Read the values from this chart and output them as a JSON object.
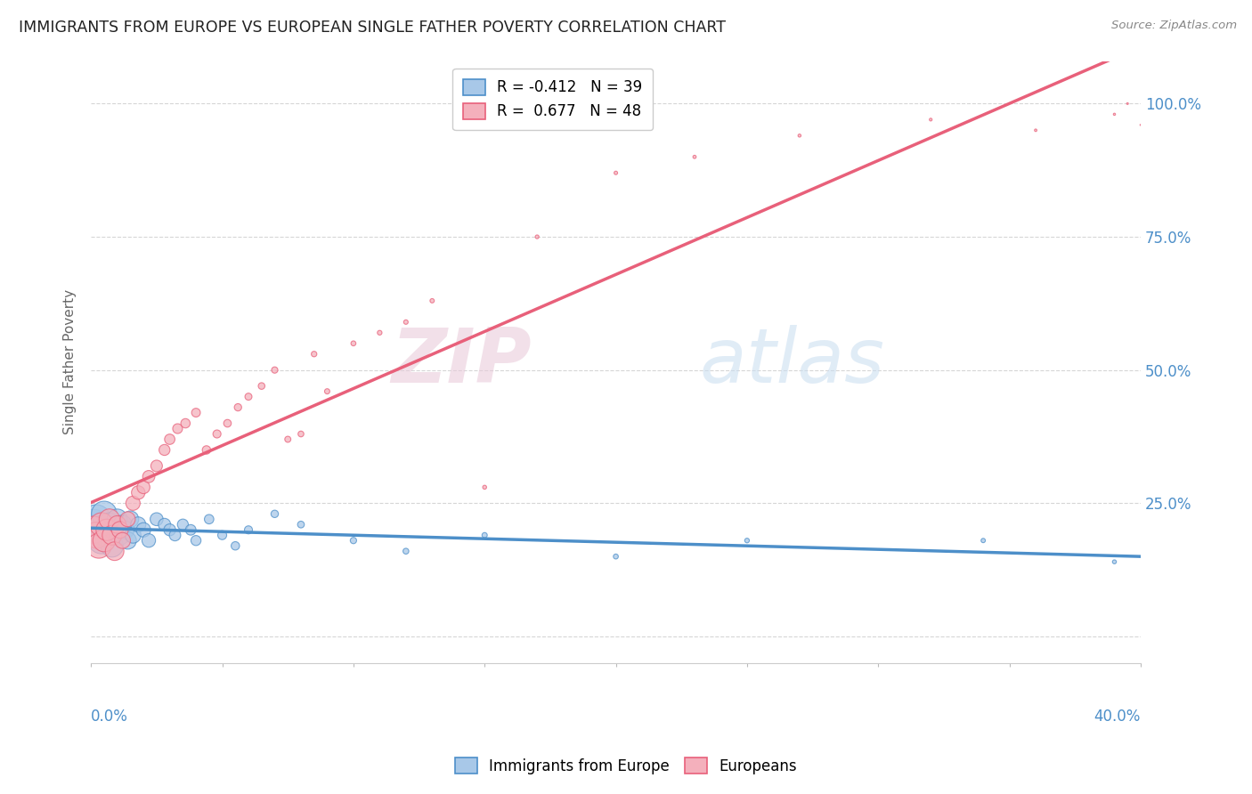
{
  "title": "IMMIGRANTS FROM EUROPE VS EUROPEAN SINGLE FATHER POVERTY CORRELATION CHART",
  "source": "Source: ZipAtlas.com",
  "ylabel": "Single Father Poverty",
  "right_yticklabels": [
    "",
    "25.0%",
    "50.0%",
    "75.0%",
    "100.0%"
  ],
  "right_yticks": [
    0.0,
    0.25,
    0.5,
    0.75,
    1.0
  ],
  "xlim": [
    0.0,
    0.4
  ],
  "ylim": [
    -0.05,
    1.08
  ],
  "blue_R": -0.412,
  "blue_N": 39,
  "pink_R": 0.677,
  "pink_N": 48,
  "blue_color": "#a8c8e8",
  "pink_color": "#f4b0bc",
  "blue_line_color": "#4d8fc9",
  "pink_line_color": "#e8607a",
  "legend_blue_label": "Immigrants from Europe",
  "legend_pink_label": "Europeans",
  "watermark_zip": "ZIP",
  "watermark_atlas": "atlas",
  "blue_scatter_x": [
    0.001,
    0.002,
    0.003,
    0.004,
    0.005,
    0.006,
    0.007,
    0.008,
    0.009,
    0.01,
    0.011,
    0.012,
    0.013,
    0.014,
    0.015,
    0.016,
    0.018,
    0.02,
    0.022,
    0.025,
    0.028,
    0.03,
    0.032,
    0.035,
    0.038,
    0.04,
    0.045,
    0.05,
    0.055,
    0.06,
    0.07,
    0.08,
    0.1,
    0.12,
    0.15,
    0.2,
    0.25,
    0.34,
    0.39
  ],
  "blue_scatter_y": [
    0.21,
    0.22,
    0.2,
    0.18,
    0.23,
    0.19,
    0.21,
    0.17,
    0.2,
    0.22,
    0.19,
    0.21,
    0.2,
    0.18,
    0.22,
    0.19,
    0.21,
    0.2,
    0.18,
    0.22,
    0.21,
    0.2,
    0.19,
    0.21,
    0.2,
    0.18,
    0.22,
    0.19,
    0.17,
    0.2,
    0.23,
    0.21,
    0.18,
    0.16,
    0.19,
    0.15,
    0.18,
    0.18,
    0.14
  ],
  "blue_marker_sizes": [
    600,
    550,
    500,
    460,
    420,
    390,
    360,
    330,
    300,
    270,
    250,
    230,
    210,
    195,
    180,
    165,
    150,
    135,
    120,
    110,
    100,
    92,
    85,
    78,
    72,
    66,
    58,
    52,
    46,
    42,
    36,
    30,
    26,
    22,
    18,
    16,
    14,
    12,
    10
  ],
  "pink_scatter_x": [
    0.001,
    0.002,
    0.003,
    0.004,
    0.005,
    0.006,
    0.007,
    0.008,
    0.009,
    0.01,
    0.011,
    0.012,
    0.014,
    0.016,
    0.018,
    0.02,
    0.022,
    0.025,
    0.028,
    0.03,
    0.033,
    0.036,
    0.04,
    0.044,
    0.048,
    0.052,
    0.056,
    0.06,
    0.065,
    0.07,
    0.075,
    0.08,
    0.085,
    0.09,
    0.1,
    0.11,
    0.12,
    0.13,
    0.15,
    0.17,
    0.2,
    0.23,
    0.27,
    0.32,
    0.36,
    0.39,
    0.395,
    0.4
  ],
  "pink_scatter_y": [
    0.2,
    0.19,
    0.17,
    0.21,
    0.18,
    0.2,
    0.22,
    0.19,
    0.16,
    0.21,
    0.2,
    0.18,
    0.22,
    0.25,
    0.27,
    0.28,
    0.3,
    0.32,
    0.35,
    0.37,
    0.39,
    0.4,
    0.42,
    0.35,
    0.38,
    0.4,
    0.43,
    0.45,
    0.47,
    0.5,
    0.37,
    0.38,
    0.53,
    0.46,
    0.55,
    0.57,
    0.59,
    0.63,
    0.28,
    0.75,
    0.87,
    0.9,
    0.94,
    0.97,
    0.95,
    0.98,
    1.0,
    0.96
  ],
  "pink_marker_sizes": [
    480,
    440,
    400,
    365,
    330,
    300,
    275,
    250,
    225,
    200,
    182,
    165,
    148,
    133,
    120,
    108,
    97,
    87,
    78,
    70,
    63,
    57,
    50,
    46,
    42,
    38,
    35,
    32,
    29,
    26,
    24,
    22,
    20,
    18,
    16,
    14,
    13,
    12,
    10,
    9,
    8,
    7,
    6,
    5,
    4,
    3,
    2,
    1
  ]
}
